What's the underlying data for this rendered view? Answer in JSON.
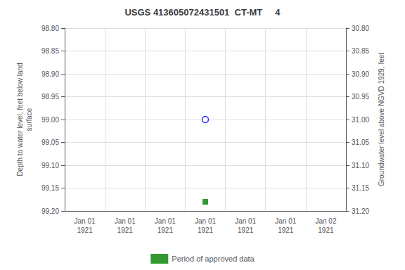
{
  "chart_data": {
    "type": "scatter",
    "title": "USGS 413605072431501  CT-MT     4",
    "ylabel": "Depth to water level, feet below land\nsurface",
    "y2label": "Groundwater level above NGVD 1929, feet",
    "categories": [
      "Jan 01\n1921",
      "Jan 01\n1921",
      "Jan 01\n1921",
      "Jan 01\n1921",
      "Jan 01\n1921",
      "Jan 01\n1921",
      "Jan 02\n1921"
    ],
    "ylim": [
      99.2,
      98.8
    ],
    "yticks": [
      {
        "value": 98.8,
        "label": "98.80"
      },
      {
        "value": 98.85,
        "label": "98.85"
      },
      {
        "value": 98.9,
        "label": "98.90"
      },
      {
        "value": 98.95,
        "label": "98.95"
      },
      {
        "value": 99.0,
        "label": "99.00"
      },
      {
        "value": 99.05,
        "label": "99.05"
      },
      {
        "value": 99.1,
        "label": "99.10"
      },
      {
        "value": 99.15,
        "label": "99.15"
      },
      {
        "value": 99.2,
        "label": "99.20"
      }
    ],
    "y2lim": [
      31.2,
      30.8
    ],
    "y2ticks": [
      {
        "value": 31.2,
        "label": "31.20"
      },
      {
        "value": 31.15,
        "label": "31.15"
      },
      {
        "value": 31.1,
        "label": "31.10"
      },
      {
        "value": 31.05,
        "label": "31.05"
      },
      {
        "value": 31.0,
        "label": "31.00"
      },
      {
        "value": 30.95,
        "label": "30.95"
      },
      {
        "value": 30.9,
        "label": "30.90"
      },
      {
        "value": 30.85,
        "label": "30.85"
      },
      {
        "value": 30.8,
        "label": "30.80"
      }
    ],
    "grid": true,
    "legend": "bottom",
    "series": [
      {
        "color": "blue",
        "marker": "open_circle",
        "values": [
          null,
          null,
          null,
          99.0,
          null,
          null,
          null
        ]
      },
      {
        "name": "Period of approved data",
        "color": "#008000",
        "marker": "square",
        "values": [
          null,
          null,
          null,
          99.18,
          null,
          null,
          null
        ]
      }
    ]
  }
}
